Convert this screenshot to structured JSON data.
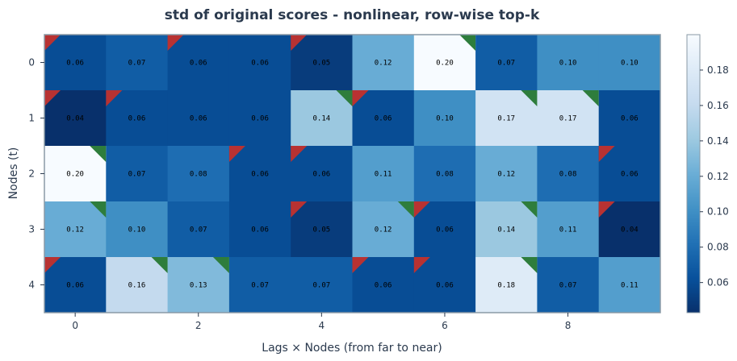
{
  "chart_data": {
    "type": "heatmap",
    "title": "std of original scores - nonlinear, row-wise top-k",
    "xlabel": "Lags × Nodes (from far to near)",
    "ylabel": "Nodes (t)",
    "x_ticks": [
      "0",
      "2",
      "4",
      "6",
      "8"
    ],
    "x_tick_positions": [
      0,
      2,
      4,
      6,
      8
    ],
    "y_ticks": [
      "0",
      "1",
      "2",
      "3",
      "4"
    ],
    "colorbar_ticks": [
      "0.06",
      "0.08",
      "0.10",
      "0.12",
      "0.14",
      "0.16",
      "0.18"
    ],
    "colorbar_tick_values": [
      0.06,
      0.08,
      0.1,
      0.12,
      0.14,
      0.16,
      0.18
    ],
    "vmin": 0.043,
    "vmax": 0.2,
    "colormap": "Blues_r",
    "values": [
      [
        0.06,
        0.07,
        0.06,
        0.06,
        0.05,
        0.12,
        0.2,
        0.07,
        0.1,
        0.1
      ],
      [
        0.04,
        0.06,
        0.06,
        0.06,
        0.14,
        0.06,
        0.1,
        0.17,
        0.17,
        0.06
      ],
      [
        0.2,
        0.07,
        0.08,
        0.06,
        0.06,
        0.11,
        0.08,
        0.12,
        0.08,
        0.06
      ],
      [
        0.12,
        0.1,
        0.07,
        0.06,
        0.05,
        0.12,
        0.06,
        0.14,
        0.11,
        0.04
      ],
      [
        0.06,
        0.16,
        0.13,
        0.07,
        0.07,
        0.06,
        0.06,
        0.18,
        0.07,
        0.11
      ]
    ],
    "labels": [
      [
        "0.06",
        "0.07",
        "0.06",
        "0.06",
        "0.05",
        "0.12",
        "0.20",
        "0.07",
        "0.10",
        "0.10"
      ],
      [
        "0.04",
        "0.06",
        "0.06",
        "0.06",
        "0.14",
        "0.06",
        "0.10",
        "0.17",
        "0.17",
        "0.06"
      ],
      [
        "0.20",
        "0.07",
        "0.08",
        "0.06",
        "0.06",
        "0.11",
        "0.08",
        "0.12",
        "0.08",
        "0.06"
      ],
      [
        "0.12",
        "0.10",
        "0.07",
        "0.06",
        "0.05",
        "0.12",
        "0.06",
        "0.14",
        "0.11",
        "0.04"
      ],
      [
        "0.06",
        "0.16",
        "0.13",
        "0.07",
        "0.07",
        "0.06",
        "0.06",
        "0.18",
        "0.07",
        "0.11"
      ]
    ],
    "markers": [
      [
        "red",
        "",
        "red",
        "",
        "red",
        "",
        "green",
        "",
        "",
        ""
      ],
      [
        "red",
        "red",
        "",
        "",
        "green",
        "red",
        "",
        "green",
        "green",
        ""
      ],
      [
        "green",
        "",
        "",
        "red",
        "red",
        "",
        "",
        "",
        "",
        "red"
      ],
      [
        "green",
        "",
        "",
        "",
        "red",
        "green",
        "red",
        "green",
        "",
        "red"
      ],
      [
        "red",
        "green",
        "green",
        "",
        "",
        "red",
        "red",
        "green",
        "",
        ""
      ]
    ],
    "marker_colors": {
      "red": "#b83232",
      "green": "#2e7d3c"
    },
    "frame_color": "#8a9aa6",
    "text_color": "#2b3a4e"
  }
}
